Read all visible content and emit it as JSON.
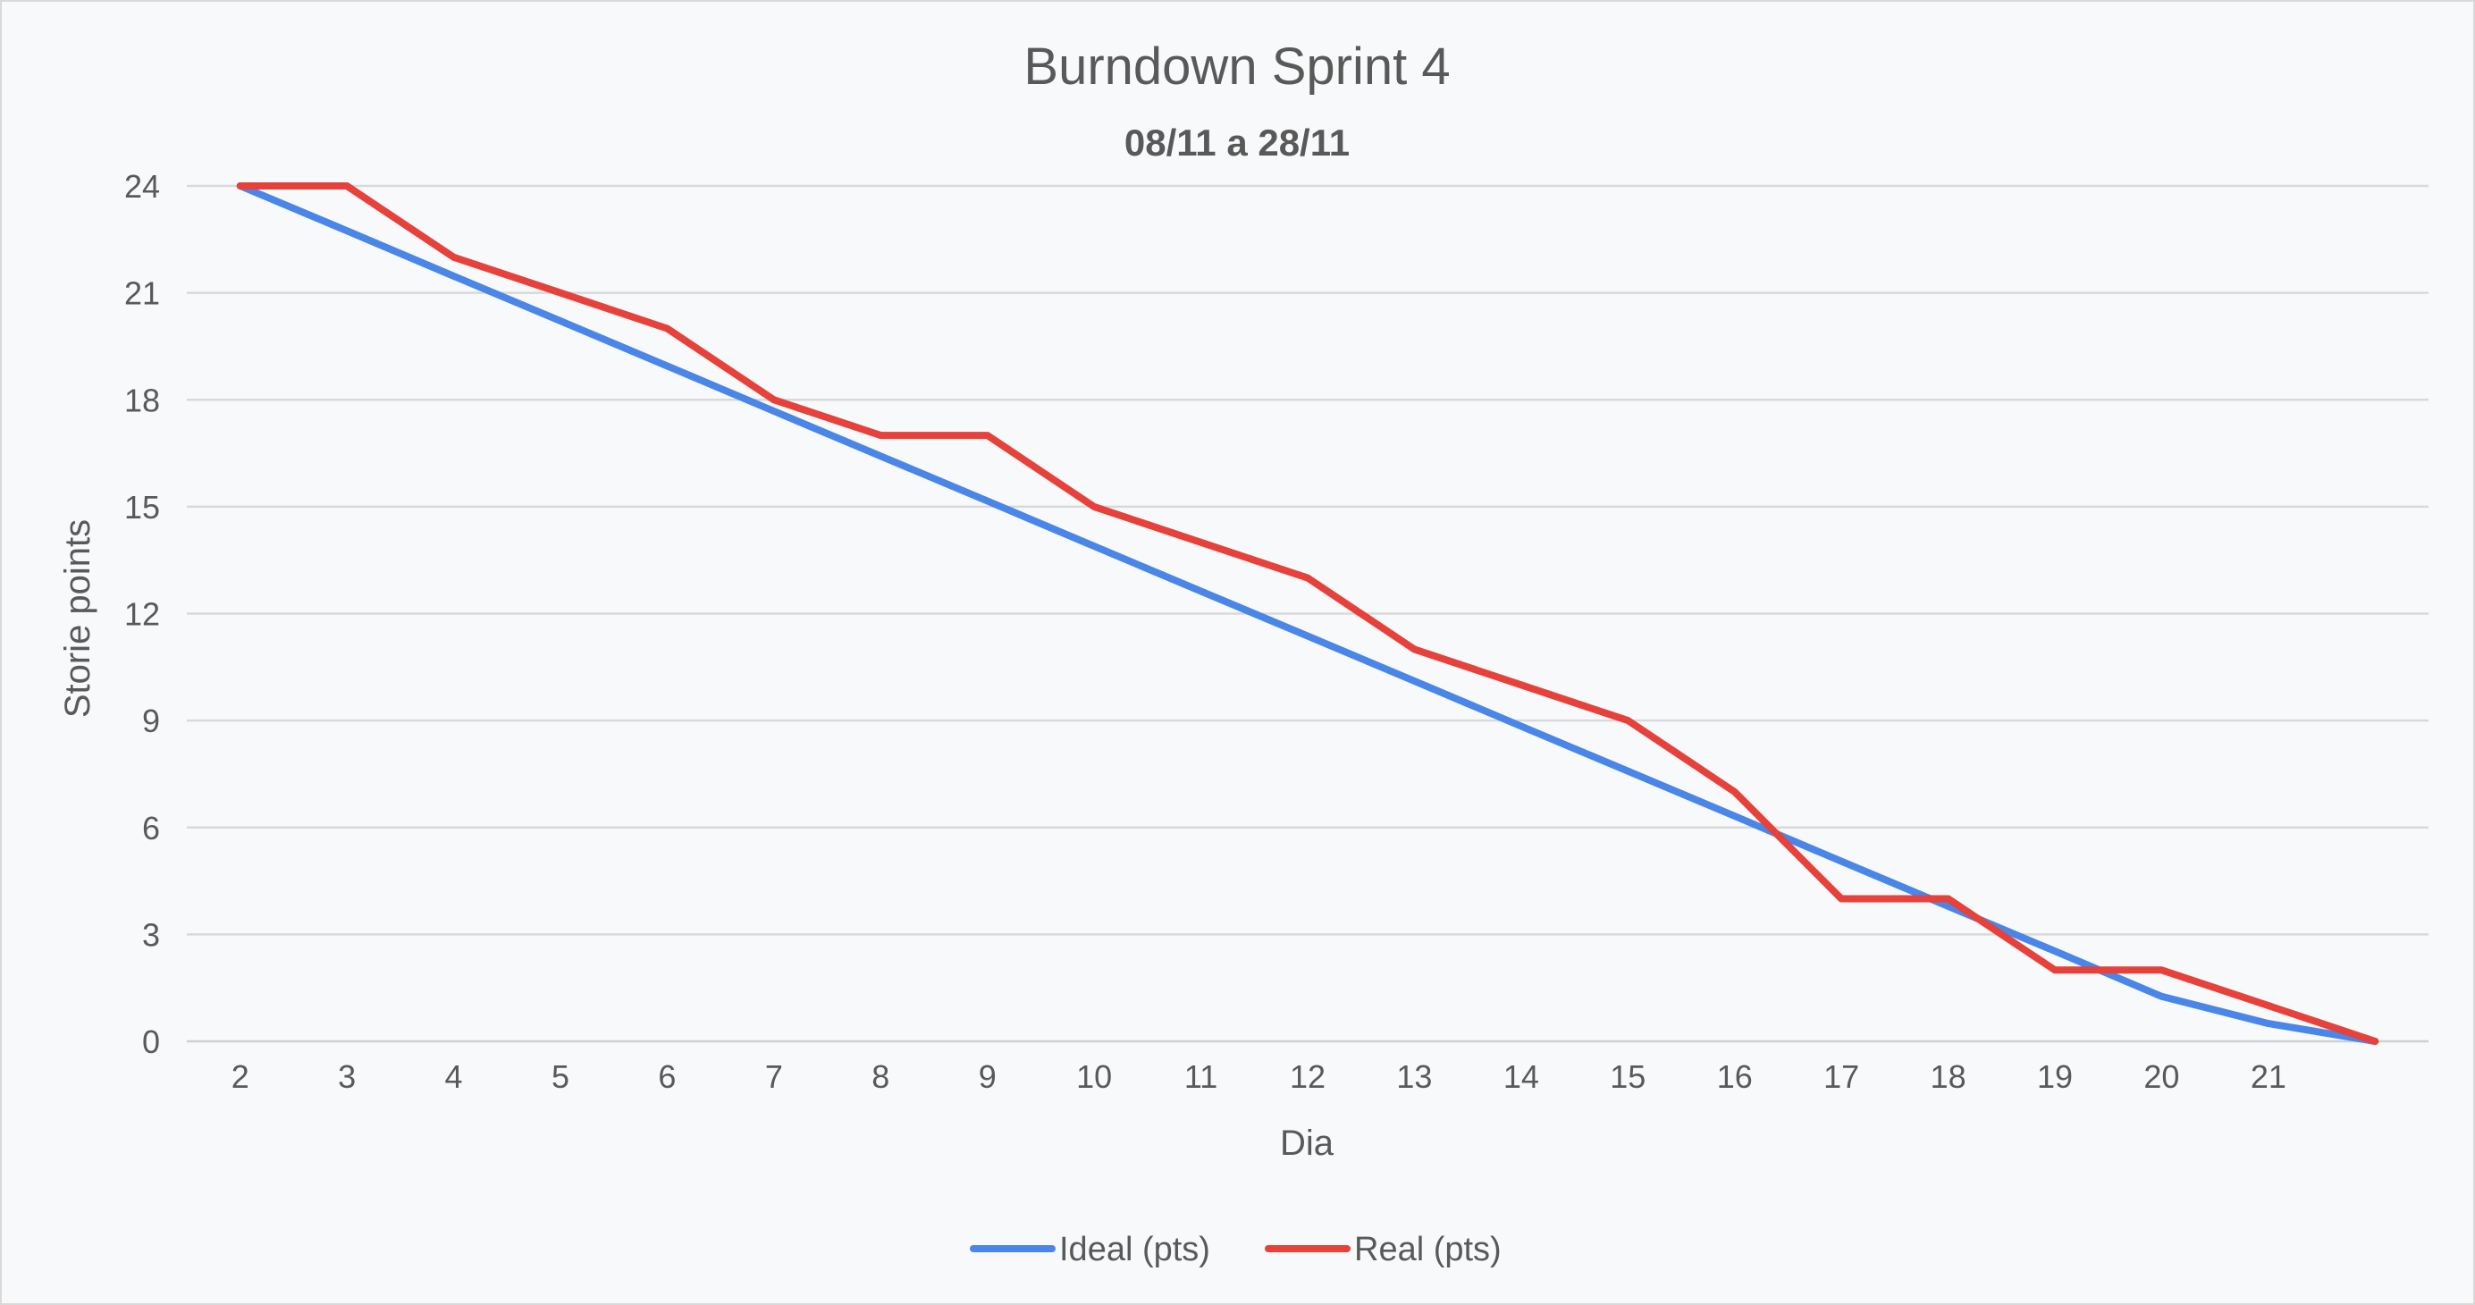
{
  "chart_data": {
    "type": "line",
    "title": "Burndown Sprint 4",
    "subtitle": "08/11 a 28/11",
    "xlabel": "Dia",
    "ylabel": "Storie points",
    "categories": [
      "2",
      "3",
      "4",
      "5",
      "6",
      "7",
      "8",
      "9",
      "10",
      "11",
      "12",
      "13",
      "14",
      "15",
      "16",
      "17",
      "18",
      "19",
      "20",
      "21",
      ""
    ],
    "ylim": [
      0,
      24
    ],
    "yticks": [
      "0",
      "3",
      "6",
      "9",
      "12",
      "15",
      "18",
      "21",
      "24"
    ],
    "grid": true,
    "legend_position": "bottom",
    "series": [
      {
        "name": "Ideal (pts)",
        "color": "#4a86e8",
        "values": [
          24,
          22.74,
          21.47,
          20.21,
          18.95,
          17.68,
          16.42,
          15.16,
          13.89,
          12.63,
          11.37,
          10.11,
          8.84,
          7.58,
          6.32,
          5.05,
          3.79,
          2.53,
          1.26,
          0.5,
          0
        ]
      },
      {
        "name": "Real (pts)",
        "color": "#e6413a",
        "values": [
          24,
          24,
          22,
          21,
          20,
          18,
          17,
          17,
          15,
          14,
          13,
          11,
          10,
          9,
          7,
          4,
          4,
          2,
          2,
          1,
          0
        ]
      }
    ]
  }
}
